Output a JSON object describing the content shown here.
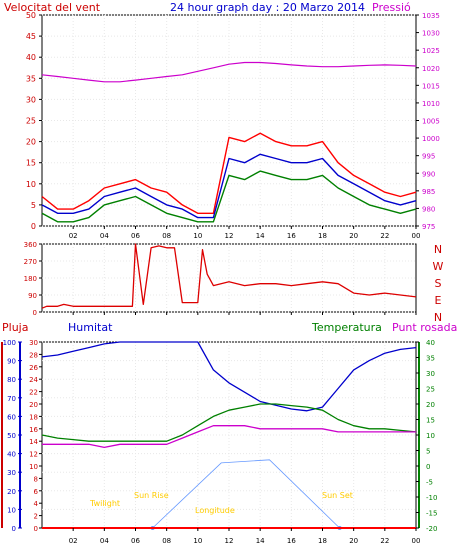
{
  "header": {
    "left_label": "Velocitat del vent",
    "title": "24 hour graph day : 20 Marzo 2014",
    "right_label": "Pressió"
  },
  "legend": {
    "pluja": "Pluja",
    "humitat": "Humitat",
    "temperatura": "Temperatura",
    "punt_rosada": "Punt rosada"
  },
  "markers": {
    "twilight": "Twilight",
    "sunrise": "Sun Rise",
    "longitude": "Longitude",
    "sunset": "Sun Set"
  },
  "colors": {
    "wind_gust": "#ff0000",
    "wind_avg": "#0000cc",
    "wind_low": "#008000",
    "pressure": "#cc00cc",
    "direction": "#dd0000",
    "humidity": "#0000cc",
    "temperature": "#008000",
    "dewpoint": "#cc00cc",
    "rain": "#ff0000",
    "sun": "#6699ff",
    "marker_text": "#ffcc00"
  },
  "chart_data": [
    {
      "type": "line",
      "title": "24 hour graph day : 20 Marzo 2014",
      "x_ticks": [
        "02",
        "04",
        "06",
        "08",
        "10",
        "12",
        "14",
        "16",
        "18",
        "20",
        "22",
        "00"
      ],
      "left_axis": {
        "label": "Velocitat del vent",
        "ticks": [
          "0",
          "5",
          "10",
          "15",
          "20",
          "25",
          "30",
          "35",
          "40",
          "45",
          "50"
        ],
        "range": [
          0,
          50
        ]
      },
      "right_axis": {
        "label": "Pressió",
        "ticks": [
          "975",
          "980",
          "985",
          "990",
          "995",
          "1000",
          "1005",
          "1010",
          "1015",
          "1020",
          "1025",
          "1030",
          "1035"
        ],
        "range": [
          975,
          1035
        ]
      },
      "x": [
        0,
        1,
        2,
        3,
        4,
        5,
        6,
        7,
        8,
        9,
        10,
        11,
        12,
        13,
        14,
        15,
        16,
        17,
        18,
        19,
        20,
        21,
        22,
        23,
        24
      ],
      "series": [
        {
          "name": "Velocitat del vent",
          "axis": "left",
          "values": [
            7,
            4,
            4,
            6,
            9,
            10,
            11,
            9,
            8,
            5,
            3,
            3,
            21,
            20,
            22,
            20,
            19,
            19,
            20,
            15,
            12,
            10,
            8,
            7,
            8
          ]
        },
        {
          "name": "Velocitat del vent",
          "axis": "left",
          "values": [
            5,
            3,
            3,
            4,
            7,
            8,
            9,
            7,
            5,
            4,
            2,
            2,
            16,
            15,
            17,
            16,
            15,
            15,
            16,
            12,
            10,
            8,
            6,
            5,
            6
          ]
        },
        {
          "name": "Velocitat del vent",
          "axis": "left",
          "values": [
            3,
            1,
            1,
            2,
            5,
            6,
            7,
            5,
            3,
            2,
            1,
            1,
            12,
            11,
            13,
            12,
            11,
            11,
            12,
            9,
            7,
            5,
            4,
            3,
            4
          ]
        },
        {
          "name": "Pressió",
          "axis": "right",
          "values": [
            1018,
            1017.5,
            1017,
            1016.5,
            1016,
            1016,
            1016.5,
            1017,
            1017.5,
            1018,
            1019,
            1020,
            1021,
            1021.5,
            1021.5,
            1021.2,
            1020.8,
            1020.5,
            1020.3,
            1020.3,
            1020.5,
            1020.7,
            1020.8,
            1020.7,
            1020.5
          ]
        }
      ]
    },
    {
      "type": "line",
      "x_ticks": [
        "02",
        "04",
        "06",
        "08",
        "10",
        "12",
        "14",
        "16",
        "18",
        "20",
        "22",
        "00"
      ],
      "left_axis": {
        "ticks": [
          "0",
          "90",
          "180",
          "270",
          "360"
        ],
        "range": [
          0,
          360
        ]
      },
      "right_axis": {
        "ticks": [
          "N",
          "W",
          "S",
          "E",
          "N"
        ]
      },
      "x": [
        0,
        0.3,
        1,
        1.4,
        2,
        3,
        4,
        5,
        5.8,
        6,
        6.5,
        7,
        7.5,
        8,
        8.5,
        9,
        9.5,
        10,
        10.3,
        10.6,
        11,
        12,
        13,
        14,
        15,
        16,
        17,
        18,
        19,
        20,
        21,
        22,
        23,
        24
      ],
      "series": [
        {
          "name": "Direcció",
          "values": [
            20,
            30,
            30,
            40,
            30,
            30,
            30,
            30,
            30,
            360,
            40,
            340,
            350,
            340,
            340,
            50,
            50,
            50,
            330,
            200,
            140,
            160,
            140,
            150,
            150,
            140,
            150,
            160,
            150,
            100,
            90,
            100,
            90,
            80
          ]
        }
      ]
    },
    {
      "type": "line",
      "x_ticks": [
        "02",
        "04",
        "06",
        "08",
        "10",
        "12",
        "14",
        "16",
        "18",
        "20",
        "22",
        "00"
      ],
      "axes": {
        "pluja": {
          "ticks": [
            "0",
            "2",
            "4",
            "6",
            "8",
            "10",
            "12",
            "14",
            "16",
            "18",
            "20",
            "22",
            "24",
            "26",
            "28",
            "30"
          ],
          "range": [
            0,
            30
          ]
        },
        "humitat": {
          "ticks": [
            "0",
            "10",
            "20",
            "30",
            "40",
            "50",
            "60",
            "70",
            "80",
            "90",
            "100"
          ],
          "range": [
            0,
            100
          ]
        },
        "temperatura": {
          "ticks": [
            "-20",
            "-15",
            "-10",
            "-5",
            "0",
            "5",
            "10",
            "15",
            "20",
            "25",
            "30",
            "35",
            "40"
          ],
          "range": [
            -20,
            40
          ]
        }
      },
      "x": [
        0,
        1,
        2,
        3,
        4,
        5,
        6,
        7,
        8,
        9,
        10,
        11,
        12,
        13,
        14,
        15,
        16,
        17,
        18,
        19,
        20,
        21,
        22,
        23,
        24
      ],
      "series": [
        {
          "name": "Humitat",
          "values": [
            92,
            93,
            95,
            97,
            99,
            100,
            100,
            100,
            100,
            100,
            100,
            85,
            78,
            73,
            68,
            66,
            64,
            63,
            65,
            75,
            85,
            90,
            94,
            96,
            97
          ]
        },
        {
          "name": "Temperatura",
          "values": [
            10,
            9,
            8.5,
            8,
            8,
            8,
            8,
            8,
            8,
            10,
            13,
            16,
            18,
            19,
            20,
            20,
            19.5,
            19,
            18,
            15,
            13,
            12,
            12,
            11.5,
            11
          ]
        },
        {
          "name": "Punt rosada",
          "values": [
            7,
            7,
            7,
            7,
            6,
            7,
            7,
            7,
            7,
            9,
            11,
            13,
            13,
            13,
            12,
            12,
            12,
            12,
            12,
            11,
            11,
            11,
            11,
            11,
            11
          ]
        },
        {
          "name": "Pluja",
          "values": [
            0,
            0,
            0,
            0,
            0,
            0,
            0,
            0,
            0,
            0,
            0,
            0,
            0,
            0,
            0,
            0,
            0,
            0,
            0,
            0,
            0,
            0,
            0,
            0,
            0
          ]
        }
      ],
      "sun_curve": {
        "x": [
          7.1,
          11.5,
          14.6,
          19.1
        ],
        "elevation": [
          0,
          21,
          22,
          0
        ]
      }
    }
  ]
}
